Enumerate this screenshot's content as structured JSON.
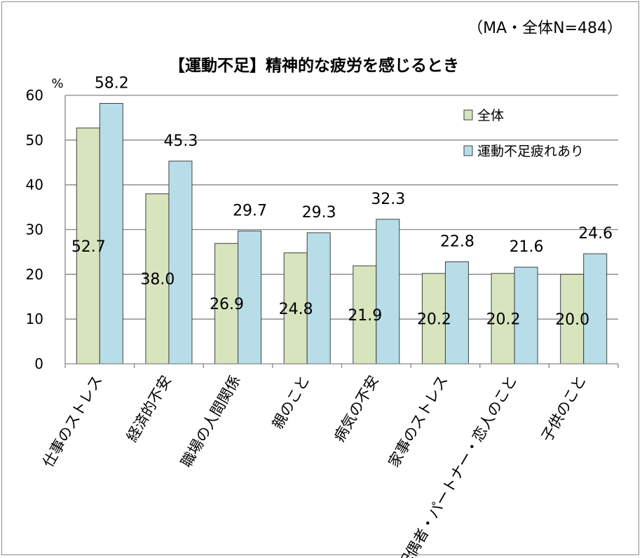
{
  "note": "（MA・全体N=484）",
  "chart_data": {
    "type": "bar",
    "title": "【運動不足】精神的な疲労を感じるとき",
    "ylabel": "%",
    "ylim": [
      0,
      60
    ],
    "yticks": [
      0,
      10,
      20,
      30,
      40,
      50,
      60
    ],
    "grid": true,
    "legend_position": "top-right",
    "categories": [
      "仕事のストレス",
      "経済的不安",
      "職場の人間関係",
      "親のこと",
      "病気の不安",
      "家事のストレス",
      "配偶者・パートナー・恋人のこと",
      "子供のこと"
    ],
    "series": [
      {
        "name": "全体",
        "color": "#d7e4bd",
        "values": [
          52.7,
          38.0,
          26.9,
          24.8,
          21.9,
          20.2,
          20.2,
          20.0
        ]
      },
      {
        "name": "運動不足疲れあり",
        "color": "#b7dde8",
        "values": [
          58.2,
          45.3,
          29.7,
          29.3,
          32.3,
          22.8,
          21.6,
          24.6
        ]
      }
    ]
  }
}
